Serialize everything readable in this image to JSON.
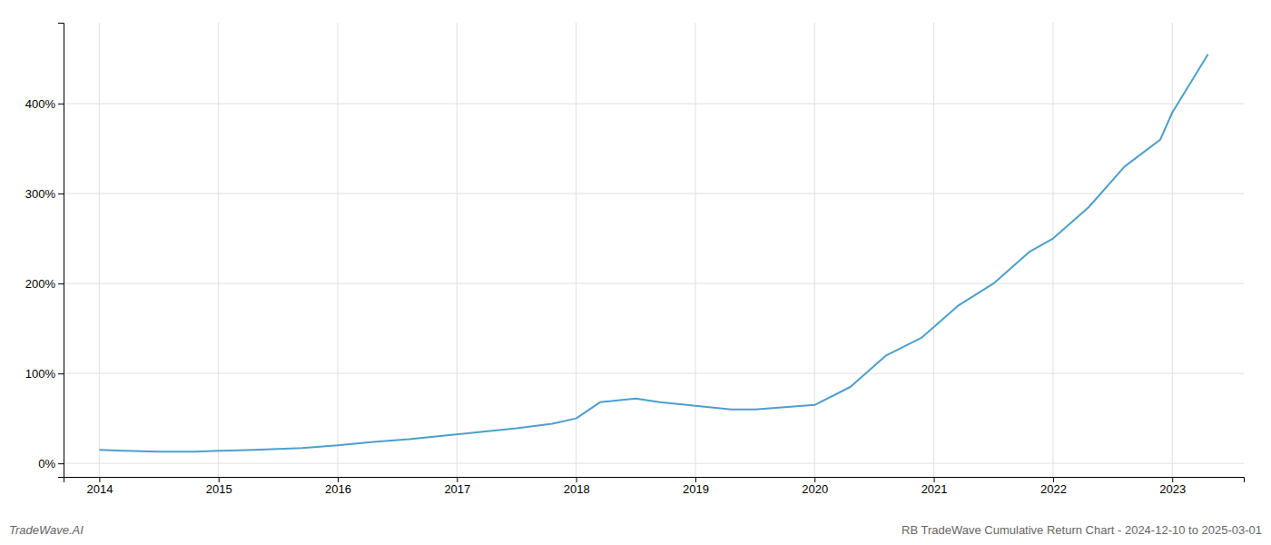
{
  "chart_data": {
    "type": "line",
    "title": "RB TradeWave Cumulative Return Chart - 2024-12-10 to 2025-03-01",
    "annotations": [
      "TradeWave.AI"
    ],
    "x": [
      2014.0,
      2014.2,
      2014.5,
      2014.8,
      2015.0,
      2015.3,
      2015.7,
      2016.0,
      2016.3,
      2016.6,
      2016.9,
      2017.2,
      2017.5,
      2017.8,
      2018.0,
      2018.2,
      2018.5,
      2018.7,
      2019.0,
      2019.3,
      2019.5,
      2019.7,
      2020.0,
      2020.3,
      2020.6,
      2020.9,
      2021.2,
      2021.5,
      2021.8,
      2022.0,
      2022.3,
      2022.6,
      2022.9,
      2023.0,
      2023.3
    ],
    "values": [
      15,
      14,
      13,
      13,
      14,
      15,
      17,
      20,
      24,
      27,
      31,
      35,
      39,
      44,
      50,
      68,
      72,
      68,
      64,
      60,
      60,
      62,
      65,
      85,
      120,
      140,
      175,
      200,
      235,
      250,
      285,
      330,
      360,
      390,
      455
    ],
    "color": "#4d9fcc",
    "xlim": [
      2013.7,
      2023.6
    ],
    "xticks": [
      2014,
      2015,
      2016,
      2017,
      2018,
      2019,
      2020,
      2021,
      2022,
      2023
    ],
    "ylim": [
      -15,
      490
    ],
    "yticks": [
      {
        "value": 0,
        "label": "0%"
      },
      {
        "value": 100,
        "label": "100%"
      },
      {
        "value": 200,
        "label": "200%"
      },
      {
        "value": 300,
        "label": "300%"
      },
      {
        "value": 400,
        "label": "400%"
      }
    ],
    "grid": true
  }
}
